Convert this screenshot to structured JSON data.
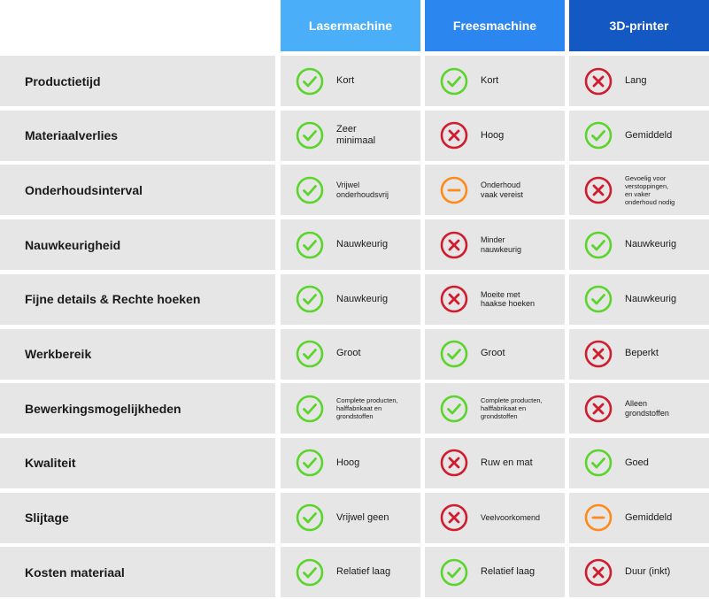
{
  "colors": {
    "check": "#5bd42c",
    "cross": "#d01c2e",
    "neutral": "#ff8a1a",
    "header_laser": "#4aaef8",
    "header_frees": "#2c86f0",
    "header_3d": "#1458c4"
  },
  "headers": [
    "Lasermachine",
    "Freesmachine",
    "3D-printer"
  ],
  "rows": [
    {
      "label": "Productietijd",
      "cells": [
        {
          "icon": "check-icon",
          "text": "Kort",
          "size": "m"
        },
        {
          "icon": "check-icon",
          "text": "Kort",
          "size": "m"
        },
        {
          "icon": "cross-icon",
          "text": "Lang",
          "size": "m"
        }
      ]
    },
    {
      "label": "Materiaalverlies",
      "cells": [
        {
          "icon": "check-icon",
          "text": "Zeer\nminimaal",
          "size": "m"
        },
        {
          "icon": "cross-icon",
          "text": "Hoog",
          "size": "m"
        },
        {
          "icon": "check-icon",
          "text": "Gemiddeld",
          "size": "m"
        }
      ]
    },
    {
      "label": "Onderhoudsinterval",
      "cells": [
        {
          "icon": "check-icon",
          "text": "Vrijwel\nonderhoudsvrij",
          "size": "s"
        },
        {
          "icon": "minus-icon",
          "text": "Onderhoud\nvaak vereist",
          "size": "s"
        },
        {
          "icon": "cross-icon",
          "text": "Gevoelig voor\nverstoppingen,\nen vaker\nonderhoud nodig",
          "size": "xs"
        }
      ]
    },
    {
      "label": "Nauwkeurigheid",
      "cells": [
        {
          "icon": "check-icon",
          "text": "Nauwkeurig",
          "size": "m"
        },
        {
          "icon": "cross-icon",
          "text": "Minder\nnauwkeurig",
          "size": "s"
        },
        {
          "icon": "check-icon",
          "text": "Nauwkeurig",
          "size": "m"
        }
      ]
    },
    {
      "label": "Fijne details & Rechte hoeken",
      "cells": [
        {
          "icon": "check-icon",
          "text": "Nauwkeurig",
          "size": "m"
        },
        {
          "icon": "cross-icon",
          "text": "Moeite met\nhaakse hoeken",
          "size": "s"
        },
        {
          "icon": "check-icon",
          "text": "Nauwkeurig",
          "size": "m"
        }
      ]
    },
    {
      "label": "Werkbereik",
      "cells": [
        {
          "icon": "check-icon",
          "text": "Groot",
          "size": "m"
        },
        {
          "icon": "check-icon",
          "text": "Groot",
          "size": "m"
        },
        {
          "icon": "cross-icon",
          "text": "Beperkt",
          "size": "m"
        }
      ]
    },
    {
      "label": "Bewerkingsmogelijkheden",
      "cells": [
        {
          "icon": "check-icon",
          "text": "Complete producten,\nhalffabrikaat en\ngrondstoffen",
          "size": "xs"
        },
        {
          "icon": "check-icon",
          "text": "Complete producten,\nhalffabrikaat en\ngrondstoffen",
          "size": "xs"
        },
        {
          "icon": "cross-icon",
          "text": "Alleen\ngrondstoffen",
          "size": "s"
        }
      ]
    },
    {
      "label": "Kwaliteit",
      "cells": [
        {
          "icon": "check-icon",
          "text": "Hoog",
          "size": "m"
        },
        {
          "icon": "cross-icon",
          "text": "Ruw en mat",
          "size": "m"
        },
        {
          "icon": "check-icon",
          "text": "Goed",
          "size": "m"
        }
      ]
    },
    {
      "label": "Slijtage",
      "cells": [
        {
          "icon": "check-icon",
          "text": "Vrijwel geen",
          "size": "m"
        },
        {
          "icon": "cross-icon",
          "text": "Veelvoorkomend",
          "size": "s"
        },
        {
          "icon": "minus-icon",
          "text": "Gemiddeld",
          "size": "m"
        }
      ]
    },
    {
      "label": "Kosten materiaal",
      "cells": [
        {
          "icon": "check-icon",
          "text": "Relatief laag",
          "size": "m"
        },
        {
          "icon": "check-icon",
          "text": "Relatief laag",
          "size": "m"
        },
        {
          "icon": "cross-icon",
          "text": "Duur (inkt)",
          "size": "m"
        }
      ]
    }
  ]
}
